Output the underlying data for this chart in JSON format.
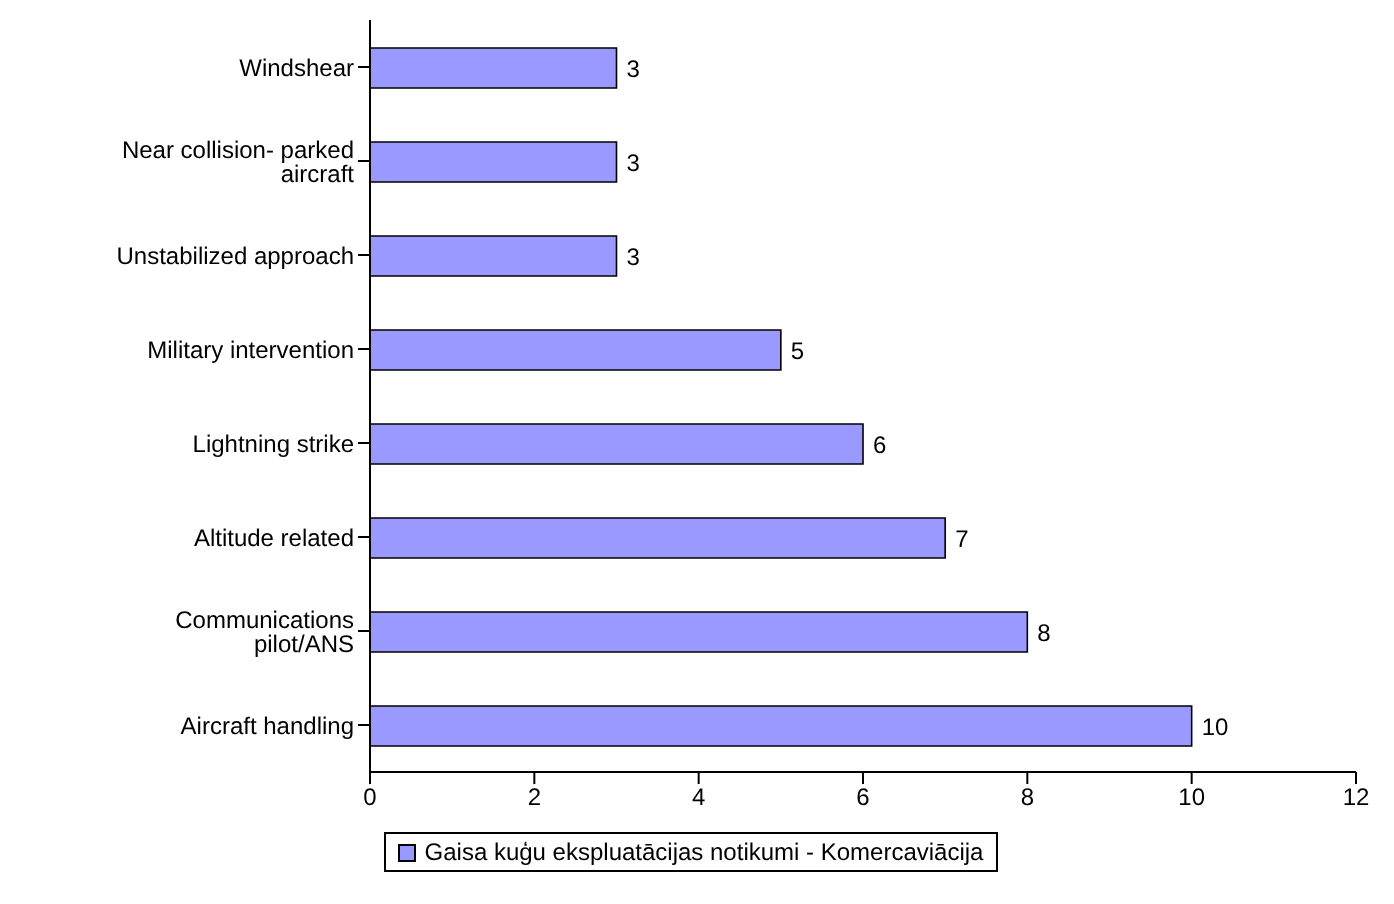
{
  "chart_data": {
    "type": "bar",
    "orientation": "horizontal",
    "categories": [
      "Windshear",
      "Near collision- parked aircraft",
      "Unstabilized approach",
      "Military intervention",
      "Lightning strike",
      "Altitude related",
      "Communications pilot/ANS",
      "Aircraft handling"
    ],
    "series": [
      {
        "name": "Gaisa kuģu ekspluatācijas notikumi - Komercaviācija",
        "color": "#9999ff",
        "values": [
          3,
          3,
          3,
          5,
          6,
          7,
          8,
          10
        ]
      }
    ],
    "xlim": [
      0,
      12
    ],
    "xticks": [
      0,
      2,
      4,
      6,
      8,
      10,
      12
    ],
    "data_labels": true,
    "legend": "bottom",
    "grid": false
  }
}
